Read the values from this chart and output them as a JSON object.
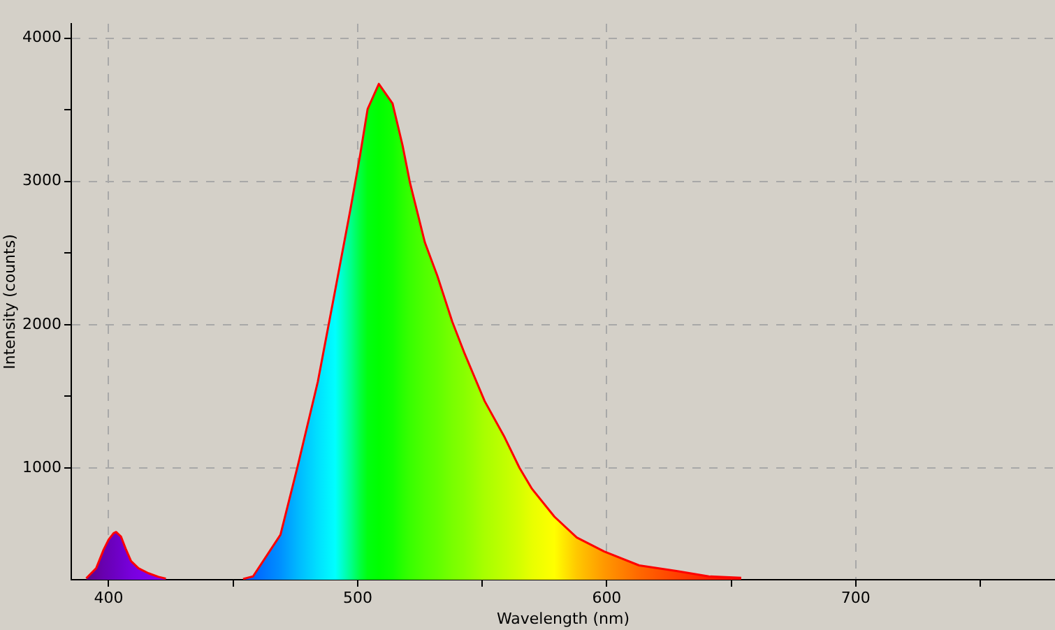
{
  "chart_data": {
    "type": "area",
    "xlabel": "Wavelength (nm)",
    "ylabel": "Intensity (counts)",
    "x": [
      391,
      395,
      398,
      400,
      402,
      403,
      405,
      407,
      409,
      412,
      416,
      420,
      423,
      438,
      454,
      458,
      469,
      476,
      484,
      491,
      497,
      501,
      504,
      508.5,
      514,
      518,
      521,
      527,
      532,
      538,
      543,
      551,
      559,
      565,
      570,
      579,
      588,
      599,
      613,
      628,
      641,
      654
    ],
    "series": [
      {
        "color": "#ff0000",
        "values": [
          230,
          300,
          430,
          500,
          545,
          553,
          520,
          430,
          350,
          300,
          265,
          240,
          228,
          null,
          225,
          243,
          534,
          1019,
          1602,
          2243,
          2796,
          3185,
          3505,
          3680,
          3544,
          3253,
          2990,
          2573,
          2340,
          2020,
          1796,
          1466,
          1214,
          1000,
          854,
          660,
          514,
          417,
          320,
          281,
          243,
          233
        ],
        "colors": [
          "#5a0a80",
          "#6400a0",
          "#6800b0",
          "#6a00b8",
          "#6c00c0",
          "#6e00c4",
          "#7000cc",
          "#7400d4",
          "#7800dc",
          "#7c00e4",
          "#8000ec",
          "#8000f0",
          "#8000f4",
          null,
          "#0050ff",
          "#0064ff",
          "#0090ff",
          "#00b8ff",
          "#00e0ff",
          "#00ffff",
          "#00ff90",
          "#00ff40",
          "#00ff10",
          "#00ff00",
          "#10ff00",
          "#28ff00",
          "#38ff00",
          "#50ff00",
          "#60ff00",
          "#78ff00",
          "#88ff00",
          "#a8ff00",
          "#c0ff00",
          "#d4ff00",
          "#e8ff00",
          "#ffff00",
          "#ffc800",
          "#ff9800",
          "#ff6800",
          "#ff4000",
          "#ff2000",
          "#ff0800"
        ]
      }
    ],
    "xlim": [
      385,
      780
    ],
    "xticks": [
      400,
      {
        "value": 450,
        "label": null
      },
      500,
      {
        "value": 550,
        "label": null
      },
      600,
      {
        "value": 650,
        "label": null
      },
      700,
      {
        "value": 750,
        "label": null
      }
    ],
    "ylim": [
      220,
      4100
    ],
    "yticks": [
      1000,
      {
        "value": 1500,
        "label": null
      },
      2000,
      {
        "value": 2500,
        "label": null
      },
      3000,
      {
        "value": 3500,
        "label": null
      },
      4000
    ],
    "grid": true,
    "legend": false,
    "marker": "none",
    "line_style": "solid"
  }
}
